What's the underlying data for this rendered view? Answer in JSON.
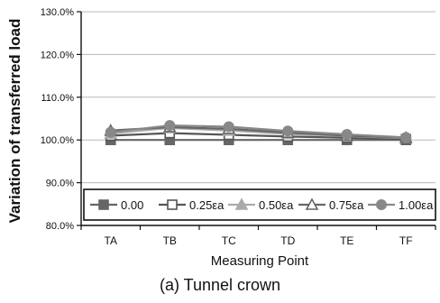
{
  "chart_data": {
    "type": "line",
    "ylabel": "Variation of transferred load",
    "xlabel": "Measuring Point",
    "categories": [
      "TA",
      "TB",
      "TC",
      "TD",
      "TE",
      "TF"
    ],
    "ylim": [
      80.0,
      130.0
    ],
    "yticks": [
      80.0,
      90.0,
      100.0,
      110.0,
      120.0,
      130.0
    ],
    "ytick_labels": [
      "80.0%",
      "90.0%",
      "100.0%",
      "110.0%",
      "120.0%",
      "130.0%"
    ],
    "grid": "horizontal",
    "legend_placement": "bottom, inside plot area",
    "series": [
      {
        "name": "0.00",
        "marker": "square-filled",
        "color": "#666666",
        "values": [
          100.0,
          100.0,
          100.0,
          100.0,
          100.0,
          100.0
        ]
      },
      {
        "name": "0.25εa",
        "marker": "square-open",
        "color": "#555555",
        "values": [
          101.0,
          101.6,
          101.2,
          100.8,
          100.5,
          100.2
        ]
      },
      {
        "name": "0.50εa",
        "marker": "triangle-filled",
        "color": "#aaaaaa",
        "values": [
          101.5,
          102.8,
          102.2,
          101.4,
          100.9,
          100.4
        ]
      },
      {
        "name": "0.75εa",
        "marker": "triangle-open",
        "color": "#666666",
        "values": [
          102.2,
          103.0,
          102.6,
          101.7,
          101.0,
          100.5
        ]
      },
      {
        "name": "1.00εa",
        "marker": "circle-filled",
        "color": "#888888",
        "values": [
          101.8,
          103.4,
          103.1,
          102.1,
          101.3,
          100.6
        ]
      }
    ]
  },
  "caption": "(a)  Tunnel  crown"
}
